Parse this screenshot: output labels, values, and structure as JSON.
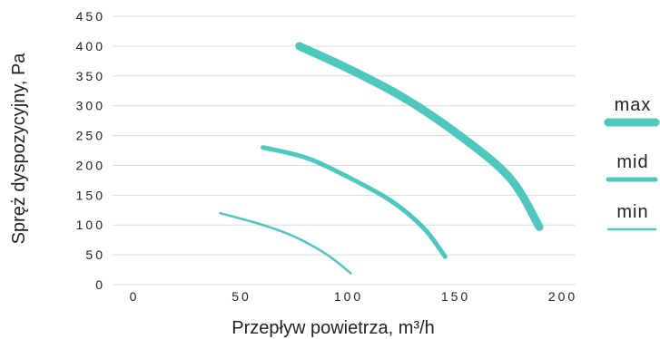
{
  "chart_data": {
    "type": "line",
    "title": "",
    "xlabel": "Przepływ powietrza, m³/h",
    "ylabel": "Spręż dyspozycyjny, Pa",
    "xlim": [
      0,
      200
    ],
    "ylim": [
      0,
      450
    ],
    "x_ticks": [
      "0",
      "50",
      "100",
      "150",
      "200"
    ],
    "y_ticks": [
      "0",
      "50",
      "100",
      "150",
      "200",
      "250",
      "300",
      "350",
      "400",
      "450"
    ],
    "grid": "horizontal",
    "legend_position": "right",
    "series_color": "#4cc8bd",
    "series": [
      {
        "name": "max",
        "weight": "thick",
        "points": [
          [
            77,
            400
          ],
          [
            100,
            362
          ],
          [
            125,
            315
          ],
          [
            150,
            255
          ],
          [
            175,
            180
          ],
          [
            189,
            97
          ]
        ]
      },
      {
        "name": "mid",
        "weight": "medium",
        "points": [
          [
            60,
            230
          ],
          [
            80,
            213
          ],
          [
            100,
            180
          ],
          [
            120,
            140
          ],
          [
            135,
            95
          ],
          [
            145,
            47
          ]
        ]
      },
      {
        "name": "min",
        "weight": "thin",
        "points": [
          [
            40,
            120
          ],
          [
            60,
            100
          ],
          [
            75,
            80
          ],
          [
            90,
            50
          ],
          [
            101,
            19
          ]
        ]
      }
    ]
  }
}
